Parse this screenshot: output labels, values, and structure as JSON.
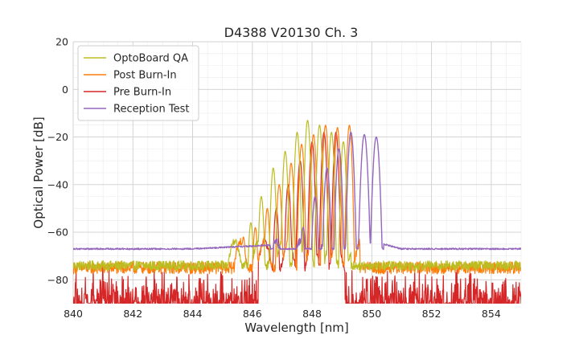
{
  "chart_data": {
    "type": "line",
    "title": "D4388 V20130 Ch. 3",
    "xlabel": "Wavelength [nm]",
    "ylabel": "Optical Power [dB]",
    "xlim": [
      840,
      855
    ],
    "ylim": [
      -90,
      20
    ],
    "xticks": [
      840,
      842,
      844,
      846,
      848,
      850,
      852,
      854
    ],
    "yticks": [
      20,
      0,
      -20,
      -40,
      -60,
      -80
    ],
    "ytick_labels": [
      "20",
      "0",
      "−20",
      "−40",
      "−60",
      "−80"
    ],
    "x_minor_step": 0.5,
    "y_minor_step": 5,
    "grid": true,
    "legend_position": "top-left",
    "noise_floor_note": "",
    "series": [
      {
        "name": "OptoBoard QA",
        "color": "#bcbd22",
        "floor": -74,
        "floor_jitter": 4,
        "peaks": [
          {
            "x": 845.45,
            "y": -63,
            "w": 0.07
          },
          {
            "x": 845.95,
            "y": -56,
            "w": 0.07
          },
          {
            "x": 846.3,
            "y": -45,
            "w": 0.07
          },
          {
            "x": 846.7,
            "y": -33,
            "w": 0.07
          },
          {
            "x": 847.1,
            "y": -26,
            "w": 0.07
          },
          {
            "x": 847.5,
            "y": -18,
            "w": 0.07
          },
          {
            "x": 847.85,
            "y": -13,
            "w": 0.07
          },
          {
            "x": 848.25,
            "y": -15,
            "w": 0.07
          },
          {
            "x": 848.65,
            "y": -18,
            "w": 0.07
          },
          {
            "x": 849.05,
            "y": -22,
            "w": 0.07
          }
        ],
        "cutoff_low": 845.2,
        "cutoff_high": 849.3
      },
      {
        "name": "Post Burn-In",
        "color": "#ff7f0e",
        "floor": -75,
        "floor_jitter": 5,
        "peaks": [
          {
            "x": 845.7,
            "y": -62,
            "w": 0.07
          },
          {
            "x": 846.1,
            "y": -58,
            "w": 0.07
          },
          {
            "x": 846.5,
            "y": -50,
            "w": 0.07
          },
          {
            "x": 846.9,
            "y": -40,
            "w": 0.07
          },
          {
            "x": 847.3,
            "y": -31,
            "w": 0.07
          },
          {
            "x": 847.65,
            "y": -23,
            "w": 0.07
          },
          {
            "x": 848.05,
            "y": -19,
            "w": 0.07
          },
          {
            "x": 848.45,
            "y": -15,
            "w": 0.07
          },
          {
            "x": 848.85,
            "y": -16,
            "w": 0.07
          },
          {
            "x": 849.25,
            "y": -15,
            "w": 0.07
          }
        ],
        "cutoff_low": 845.4,
        "cutoff_high": 849.6
      },
      {
        "name": "Pre Burn-In",
        "color": "#d62728",
        "floor": -90,
        "floor_jitter": 18,
        "peaks": [
          {
            "x": 846.4,
            "y": -62,
            "w": 0.07
          },
          {
            "x": 846.8,
            "y": -50,
            "w": 0.07
          },
          {
            "x": 847.2,
            "y": -40,
            "w": 0.07
          },
          {
            "x": 847.6,
            "y": -30,
            "w": 0.07
          },
          {
            "x": 848.0,
            "y": -22,
            "w": 0.07
          },
          {
            "x": 848.4,
            "y": -18,
            "w": 0.07
          },
          {
            "x": 848.8,
            "y": -18,
            "w": 0.07
          }
        ],
        "cutoff_low": 846.2,
        "cutoff_high": 849.1
      },
      {
        "name": "Reception Test",
        "color": "#9467bd",
        "floor": -67,
        "floor_jitter": 0.6,
        "peaks": [
          {
            "x": 847.7,
            "y": -58,
            "w": 0.08
          },
          {
            "x": 848.1,
            "y": -45,
            "w": 0.08
          },
          {
            "x": 848.5,
            "y": -33,
            "w": 0.08
          },
          {
            "x": 848.9,
            "y": -25,
            "w": 0.08
          },
          {
            "x": 849.3,
            "y": -18,
            "w": 0.08
          },
          {
            "x": 849.75,
            "y": -19,
            "w": 0.09
          },
          {
            "x": 850.15,
            "y": -20,
            "w": 0.09
          }
        ],
        "cutoff_low": 846.6,
        "cutoff_high": 850.4
      }
    ]
  }
}
